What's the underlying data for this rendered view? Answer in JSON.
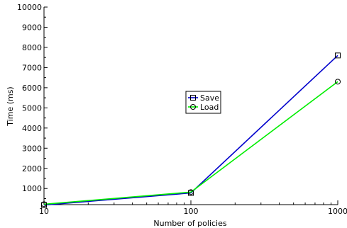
{
  "chart_data": {
    "type": "line",
    "xscale": "log",
    "x": [
      10,
      100,
      1000
    ],
    "xlim": [
      10,
      1000
    ],
    "ylim": [
      200,
      10000
    ],
    "xticks": [
      "10",
      "100",
      "1000"
    ],
    "yticks": [
      1000,
      2000,
      3000,
      4000,
      5000,
      6000,
      7000,
      8000,
      9000,
      10000
    ],
    "xlabel": "Number of policies",
    "ylabel": "Time (ms)",
    "grid": false,
    "legend_position": "center",
    "series": [
      {
        "name": "Save",
        "values": [
          180,
          780,
          7600
        ],
        "color": "#0000cc",
        "marker": "square"
      },
      {
        "name": "Load",
        "values": [
          220,
          820,
          6300
        ],
        "color": "#00ee00",
        "marker": "circle"
      }
    ]
  }
}
